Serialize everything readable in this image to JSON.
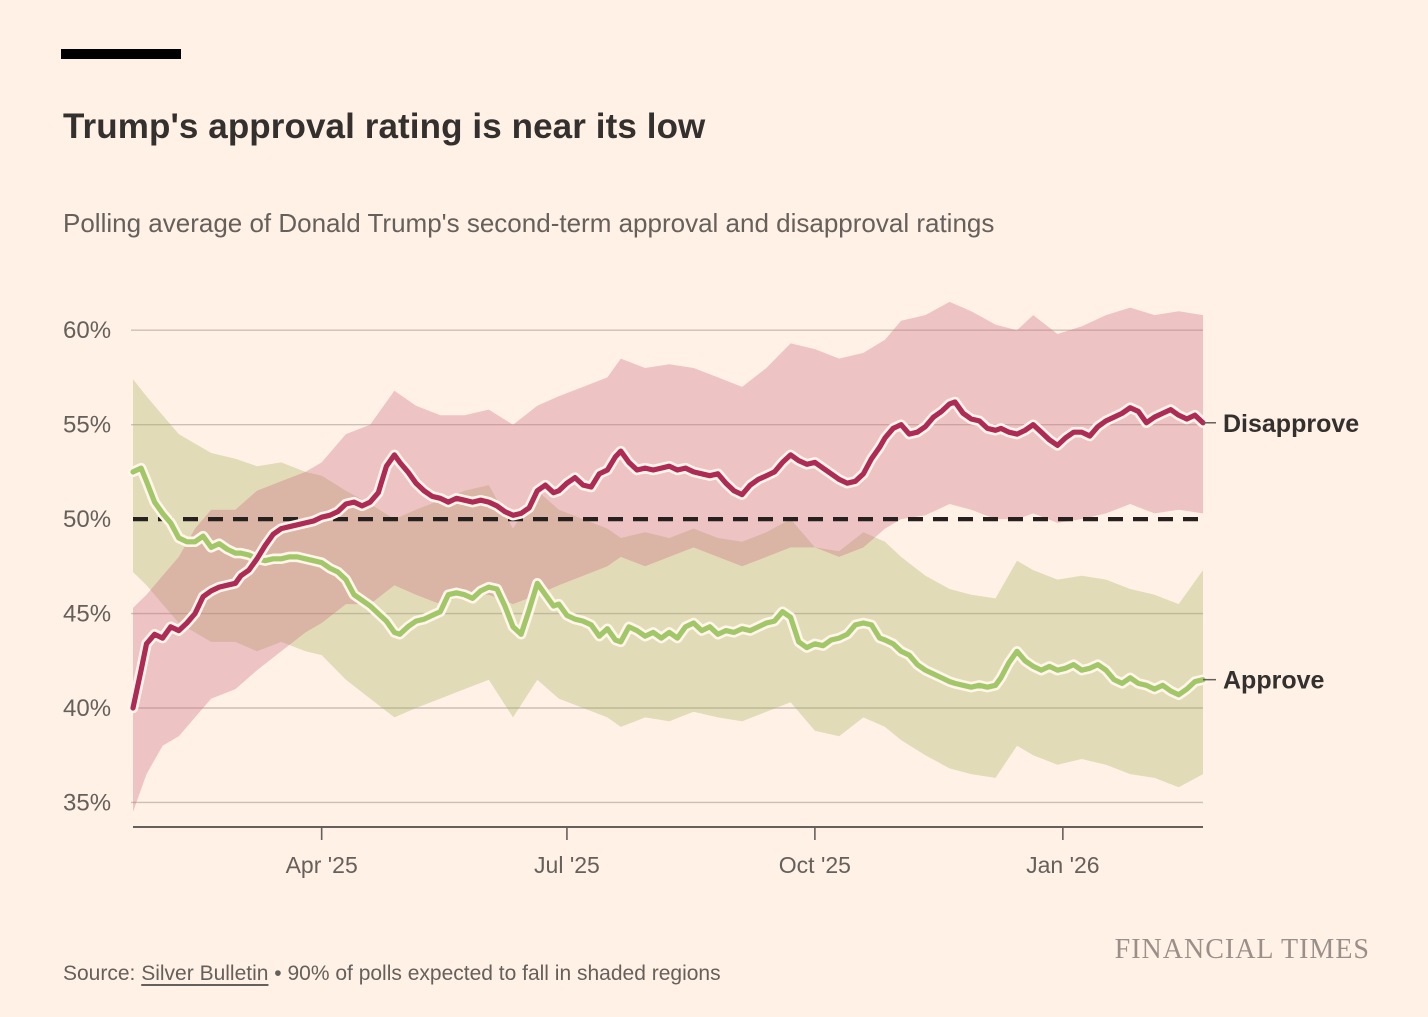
{
  "header": {
    "title": "Trump's approval rating is near its low",
    "subtitle": "Polling average of Donald Trump's second-term approval and disapproval ratings"
  },
  "footer": {
    "source_prefix": "Source: ",
    "source_link_label": "Silver Bulletin",
    "source_suffix": " • 90% of polls expected to fall in shaded regions",
    "brand": "FINANCIAL TIMES"
  },
  "theme": {
    "background": "#FFF1E5",
    "text_primary": "#33302E",
    "text_secondary": "#66605C",
    "grid_color": "#CCC0B4",
    "axis_color": "#66605C",
    "reference_line_color": "#26211F",
    "halo_color": "#FFF5EA",
    "brand_color": "#9A9089"
  },
  "chart_data": {
    "type": "line",
    "title": "Trump's approval rating is near its low",
    "subtitle": "Polling average of Donald Trump's second-term approval and disapproval ratings",
    "annotation": "90% of polls expected to fall in shaded regions",
    "legend_position": "right-edge-labels",
    "grid": true,
    "x_axis": {
      "unit": "days since 20 Jan 2025",
      "domain_days": [
        0,
        397
      ],
      "ticks": [
        {
          "label": "Apr '25",
          "day": 70
        },
        {
          "label": "Jul '25",
          "day": 161
        },
        {
          "label": "Oct '25",
          "day": 253
        },
        {
          "label": "Jan '26",
          "day": 345
        }
      ]
    },
    "y_axis": {
      "range": [
        33.7,
        61.6
      ],
      "reference_line": 50,
      "ticks": [
        {
          "label": "60%",
          "value": 60
        },
        {
          "label": "55%",
          "value": 55
        },
        {
          "label": "50%",
          "value": 50
        },
        {
          "label": "45%",
          "value": 45
        },
        {
          "label": "40%",
          "value": 40
        },
        {
          "label": "35%",
          "value": 35
        }
      ]
    },
    "series": [
      {
        "key": "disapprove",
        "name": "Disapprove",
        "color": "#AD2B55",
        "band_color": "rgba(205,105,130,0.34)"
      },
      {
        "key": "approve",
        "name": "Approve",
        "color": "#A2C769",
        "band_color": "rgba(163,175,90,0.32)"
      }
    ],
    "points": {
      "days": [
        0,
        3,
        5,
        8,
        11,
        14,
        17,
        20,
        23,
        26,
        29,
        32,
        35,
        38,
        40,
        43,
        46,
        49,
        52,
        55,
        58,
        61,
        64,
        67,
        70,
        73,
        76,
        79,
        82,
        85,
        88,
        91,
        94,
        97,
        99,
        102,
        105,
        108,
        111,
        114,
        117,
        120,
        123,
        126,
        129,
        132,
        135,
        138,
        141,
        144,
        147,
        150,
        153,
        156,
        158,
        161,
        164,
        167,
        170,
        173,
        176,
        179,
        181,
        184,
        187,
        190,
        193,
        196,
        199,
        202,
        205,
        208,
        211,
        214,
        217,
        220,
        223,
        226,
        229,
        232,
        235,
        238,
        241,
        244,
        247,
        250,
        253,
        256,
        259,
        262,
        265,
        268,
        271,
        274,
        277,
        279,
        282,
        285,
        288,
        291,
        294,
        297,
        300,
        303,
        305,
        308,
        311,
        314,
        317,
        320,
        322,
        325,
        328,
        331,
        334,
        337,
        340,
        343,
        346,
        349,
        352,
        355,
        358,
        361,
        364,
        367,
        370,
        373,
        376,
        379,
        382,
        385,
        388,
        391,
        394,
        397
      ],
      "approve": [
        52.5,
        52.7,
        52.0,
        50.9,
        50.3,
        49.8,
        49.0,
        48.8,
        48.8,
        49.1,
        48.5,
        48.7,
        48.4,
        48.2,
        48.2,
        48.1,
        47.9,
        47.8,
        47.9,
        47.9,
        48.0,
        48.0,
        47.9,
        47.8,
        47.7,
        47.4,
        47.2,
        46.8,
        46.0,
        45.7,
        45.4,
        45.0,
        44.6,
        44.0,
        43.9,
        44.3,
        44.6,
        44.7,
        44.9,
        45.1,
        46.0,
        46.1,
        46.0,
        45.8,
        46.2,
        46.4,
        46.3,
        45.4,
        44.3,
        43.9,
        45.2,
        46.6,
        46.0,
        45.4,
        45.5,
        44.9,
        44.7,
        44.6,
        44.4,
        43.8,
        44.2,
        43.6,
        43.5,
        44.3,
        44.1,
        43.8,
        44.0,
        43.7,
        44.0,
        43.7,
        44.3,
        44.5,
        44.1,
        44.3,
        43.9,
        44.1,
        44.0,
        44.2,
        44.1,
        44.3,
        44.5,
        44.6,
        45.1,
        44.8,
        43.5,
        43.2,
        43.4,
        43.3,
        43.6,
        43.7,
        43.9,
        44.4,
        44.5,
        44.4,
        43.7,
        43.6,
        43.4,
        43.0,
        42.8,
        42.3,
        42.0,
        41.8,
        41.6,
        41.4,
        41.3,
        41.2,
        41.1,
        41.2,
        41.1,
        41.2,
        41.6,
        42.4,
        43.0,
        42.5,
        42.2,
        42.0,
        42.2,
        42.0,
        42.1,
        42.3,
        42.0,
        42.1,
        42.3,
        42.0,
        41.5,
        41.3,
        41.6,
        41.3,
        41.2,
        41.0,
        41.2,
        40.9,
        40.7,
        41.0,
        41.4,
        41.5
      ],
      "disapprove": [
        40.0,
        42.0,
        43.4,
        43.9,
        43.7,
        44.3,
        44.1,
        44.5,
        45.0,
        45.9,
        46.2,
        46.4,
        46.5,
        46.6,
        47.0,
        47.3,
        47.9,
        48.6,
        49.2,
        49.5,
        49.6,
        49.7,
        49.8,
        49.9,
        50.1,
        50.2,
        50.4,
        50.8,
        50.9,
        50.7,
        50.9,
        51.4,
        52.8,
        53.4,
        53.0,
        52.5,
        51.9,
        51.5,
        51.2,
        51.1,
        50.9,
        51.1,
        51.0,
        50.9,
        51.0,
        50.9,
        50.7,
        50.4,
        50.2,
        50.3,
        50.6,
        51.5,
        51.8,
        51.4,
        51.5,
        51.9,
        52.2,
        51.8,
        51.7,
        52.4,
        52.6,
        53.3,
        53.6,
        53.0,
        52.6,
        52.7,
        52.6,
        52.7,
        52.8,
        52.6,
        52.7,
        52.5,
        52.4,
        52.3,
        52.4,
        51.9,
        51.5,
        51.3,
        51.8,
        52.1,
        52.3,
        52.5,
        53.0,
        53.4,
        53.1,
        52.9,
        53.0,
        52.7,
        52.4,
        52.1,
        51.9,
        52.0,
        52.4,
        53.2,
        53.8,
        54.3,
        54.8,
        55.0,
        54.5,
        54.6,
        54.9,
        55.4,
        55.7,
        56.1,
        56.2,
        55.6,
        55.3,
        55.2,
        54.8,
        54.7,
        54.8,
        54.6,
        54.5,
        54.7,
        55.0,
        54.6,
        54.2,
        53.9,
        54.3,
        54.6,
        54.6,
        54.4,
        54.9,
        55.2,
        55.4,
        55.6,
        55.9,
        55.7,
        55.1,
        55.4,
        55.6,
        55.8,
        55.5,
        55.3,
        55.5,
        55.1
      ]
    },
    "bands": {
      "days": [
        0,
        5,
        11,
        17,
        23,
        29,
        38,
        46,
        55,
        64,
        70,
        79,
        88,
        97,
        105,
        114,
        123,
        132,
        141,
        150,
        158,
        167,
        176,
        181,
        190,
        199,
        208,
        217,
        226,
        235,
        244,
        253,
        262,
        271,
        279,
        285,
        294,
        303,
        311,
        320,
        328,
        334,
        343,
        352,
        361,
        370,
        379,
        388,
        397
      ],
      "approve_lo": [
        47.2,
        46.5,
        45.5,
        44.5,
        44.0,
        43.5,
        43.5,
        43.0,
        43.5,
        43.0,
        42.8,
        41.5,
        40.5,
        39.5,
        40.0,
        40.5,
        41.0,
        41.5,
        39.5,
        41.5,
        40.5,
        40.0,
        39.5,
        39.0,
        39.5,
        39.3,
        39.8,
        39.5,
        39.3,
        39.8,
        40.3,
        38.8,
        38.5,
        39.5,
        39.0,
        38.3,
        37.5,
        36.8,
        36.5,
        36.3,
        38.0,
        37.5,
        37.0,
        37.3,
        37.0,
        36.5,
        36.3,
        35.8,
        36.5
      ],
      "approve_hi": [
        57.4,
        56.5,
        55.5,
        54.5,
        54.0,
        53.5,
        53.2,
        52.8,
        53.0,
        52.5,
        52.3,
        51.5,
        50.8,
        50.0,
        50.5,
        51.0,
        51.5,
        51.8,
        49.5,
        51.5,
        50.5,
        50.0,
        49.5,
        49.0,
        49.3,
        49.0,
        49.5,
        49.0,
        48.8,
        49.3,
        50.0,
        48.5,
        48.3,
        49.3,
        48.8,
        48.0,
        47.0,
        46.3,
        46.0,
        45.8,
        47.8,
        47.3,
        46.8,
        47.0,
        46.8,
        46.3,
        46.0,
        45.5,
        47.3
      ],
      "disapprove_lo": [
        34.5,
        36.5,
        38.0,
        38.5,
        39.5,
        40.5,
        41.0,
        42.0,
        43.0,
        44.0,
        44.5,
        45.5,
        45.5,
        46.5,
        46.0,
        45.5,
        46.0,
        46.0,
        45.5,
        46.0,
        46.5,
        47.0,
        47.5,
        48.0,
        47.5,
        48.0,
        48.5,
        48.0,
        47.5,
        48.0,
        48.5,
        48.5,
        48.0,
        48.5,
        49.5,
        50.0,
        50.2,
        50.8,
        50.5,
        50.0,
        50.0,
        50.3,
        49.8,
        50.0,
        50.3,
        50.8,
        50.3,
        50.5,
        50.3
      ],
      "disapprove_hi": [
        45.3,
        46.0,
        47.0,
        48.0,
        49.5,
        50.5,
        50.5,
        51.5,
        52.0,
        52.5,
        53.0,
        54.5,
        55.0,
        56.8,
        56.0,
        55.5,
        55.5,
        55.8,
        55.0,
        56.0,
        56.5,
        57.0,
        57.5,
        58.5,
        58.0,
        58.2,
        58.0,
        57.5,
        57.0,
        58.0,
        59.3,
        59.0,
        58.5,
        58.8,
        59.5,
        60.5,
        60.8,
        61.5,
        61.0,
        60.3,
        60.0,
        60.8,
        59.8,
        60.2,
        60.8,
        61.2,
        60.8,
        61.0,
        60.8
      ]
    }
  }
}
